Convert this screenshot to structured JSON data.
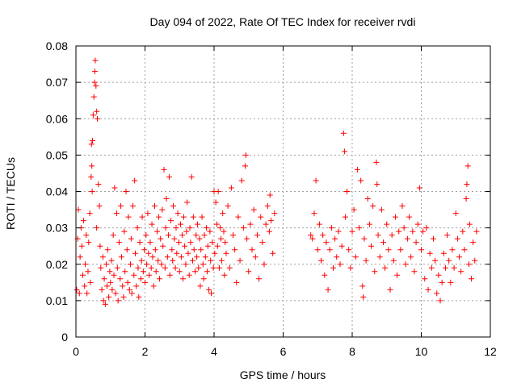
{
  "chart_data": {
    "type": "scatter",
    "title": "Day 094 of 2022, Rate Of TEC Index for receiver rvdi",
    "xlabel": "GPS time / hours",
    "ylabel": "ROTI / TECUs",
    "xlim": [
      0,
      12
    ],
    "ylim": [
      0,
      0.08
    ],
    "xticks": [
      "0",
      "2",
      "4",
      "6",
      "8",
      "10",
      "12"
    ],
    "yticks": [
      "0",
      "0.01",
      "0.02",
      "0.03",
      "0.04",
      "0.05",
      "0.06",
      "0.07",
      "0.08"
    ],
    "grid": true,
    "marker": "+",
    "color": "#ff0000",
    "series": [
      {
        "points": [
          [
            0.02,
            0.013
          ],
          [
            0.05,
            0.027
          ],
          [
            0.07,
            0.035
          ],
          [
            0.1,
            0.012
          ],
          [
            0.12,
            0.022
          ],
          [
            0.15,
            0.03
          ],
          [
            0.17,
            0.025
          ],
          [
            0.2,
            0.017
          ],
          [
            0.22,
            0.032
          ],
          [
            0.25,
            0.014
          ],
          [
            0.27,
            0.02
          ],
          [
            0.3,
            0.028
          ],
          [
            0.32,
            0.012
          ],
          [
            0.35,
            0.018
          ],
          [
            0.37,
            0.026
          ],
          [
            0.4,
            0.034
          ],
          [
            0.42,
            0.015
          ],
          [
            0.44,
            0.044
          ],
          [
            0.45,
            0.053
          ],
          [
            0.46,
            0.047
          ],
          [
            0.47,
            0.04
          ],
          [
            0.48,
            0.054
          ],
          [
            0.5,
            0.061
          ],
          [
            0.52,
            0.066
          ],
          [
            0.54,
            0.07
          ],
          [
            0.55,
            0.073
          ],
          [
            0.56,
            0.076
          ],
          [
            0.58,
            0.069
          ],
          [
            0.6,
            0.062
          ],
          [
            0.62,
            0.06
          ],
          [
            0.6,
            0.03
          ],
          [
            0.65,
            0.042
          ],
          [
            0.68,
            0.036
          ],
          [
            0.7,
            0.025
          ],
          [
            0.72,
            0.019
          ],
          [
            0.75,
            0.013
          ],
          [
            0.78,
            0.022
          ],
          [
            0.8,
            0.01
          ],
          [
            0.82,
            0.016
          ],
          [
            0.85,
            0.009
          ],
          [
            0.88,
            0.02
          ],
          [
            0.9,
            0.014
          ],
          [
            0.92,
            0.024
          ],
          [
            0.95,
            0.011
          ],
          [
            0.98,
            0.018
          ],
          [
            1.0,
            0.015
          ],
          [
            1.03,
            0.021
          ],
          [
            1.05,
            0.013
          ],
          [
            1.08,
            0.028
          ],
          [
            1.1,
            0.017
          ],
          [
            1.12,
            0.041
          ],
          [
            1.15,
            0.012
          ],
          [
            1.18,
            0.034
          ],
          [
            1.2,
            0.019
          ],
          [
            1.22,
            0.01
          ],
          [
            1.25,
            0.026
          ],
          [
            1.28,
            0.016
          ],
          [
            1.3,
            0.036
          ],
          [
            1.32,
            0.022
          ],
          [
            1.35,
            0.014
          ],
          [
            1.38,
            0.011
          ],
          [
            1.4,
            0.029
          ],
          [
            1.42,
            0.018
          ],
          [
            1.45,
            0.04
          ],
          [
            1.48,
            0.024
          ],
          [
            1.5,
            0.015
          ],
          [
            1.52,
            0.033
          ],
          [
            1.55,
            0.013
          ],
          [
            1.58,
            0.02
          ],
          [
            1.6,
            0.027
          ],
          [
            1.62,
            0.012
          ],
          [
            1.65,
            0.036
          ],
          [
            1.68,
            0.017
          ],
          [
            1.7,
            0.043
          ],
          [
            1.72,
            0.023
          ],
          [
            1.75,
            0.014
          ],
          [
            1.78,
            0.03
          ],
          [
            1.8,
            0.019
          ],
          [
            1.82,
            0.011
          ],
          [
            1.85,
            0.026
          ],
          [
            1.88,
            0.016
          ],
          [
            1.9,
            0.021
          ],
          [
            1.92,
            0.033
          ],
          [
            1.95,
            0.018
          ],
          [
            1.98,
            0.024
          ],
          [
            2.0,
            0.015
          ],
          [
            2.03,
            0.028
          ],
          [
            2.05,
            0.02
          ],
          [
            2.08,
            0.034
          ],
          [
            2.1,
            0.023
          ],
          [
            2.12,
            0.017
          ],
          [
            2.15,
            0.026
          ],
          [
            2.18,
            0.019
          ],
          [
            2.2,
            0.031
          ],
          [
            2.22,
            0.022
          ],
          [
            2.25,
            0.014
          ],
          [
            2.28,
            0.036
          ],
          [
            2.3,
            0.024
          ],
          [
            2.32,
            0.018
          ],
          [
            2.35,
            0.029
          ],
          [
            2.38,
            0.021
          ],
          [
            2.4,
            0.033
          ],
          [
            2.42,
            0.016
          ],
          [
            2.45,
            0.027
          ],
          [
            2.48,
            0.02
          ],
          [
            2.5,
            0.035
          ],
          [
            2.52,
            0.025
          ],
          [
            2.55,
            0.046
          ],
          [
            2.58,
            0.019
          ],
          [
            2.6,
            0.03
          ],
          [
            2.62,
            0.038
          ],
          [
            2.65,
            0.022
          ],
          [
            2.68,
            0.028
          ],
          [
            2.7,
            0.044
          ],
          [
            2.72,
            0.017
          ],
          [
            2.75,
            0.032
          ],
          [
            2.78,
            0.024
          ],
          [
            2.8,
            0.021
          ],
          [
            2.82,
            0.036
          ],
          [
            2.85,
            0.027
          ],
          [
            2.88,
            0.019
          ],
          [
            2.9,
            0.03
          ],
          [
            2.92,
            0.023
          ],
          [
            2.95,
            0.034
          ],
          [
            2.98,
            0.026
          ],
          [
            3.0,
            0.018
          ],
          [
            3.03,
            0.031
          ],
          [
            3.05,
            0.022
          ],
          [
            3.08,
            0.028
          ],
          [
            3.1,
            0.016
          ],
          [
            3.12,
            0.033
          ],
          [
            3.15,
            0.025
          ],
          [
            3.18,
            0.02
          ],
          [
            3.2,
            0.029
          ],
          [
            3.22,
            0.037
          ],
          [
            3.25,
            0.023
          ],
          [
            3.28,
            0.017
          ],
          [
            3.3,
            0.03
          ],
          [
            3.32,
            0.026
          ],
          [
            3.35,
            0.044
          ],
          [
            3.38,
            0.021
          ],
          [
            3.4,
            0.033
          ],
          [
            3.42,
            0.024
          ],
          [
            3.45,
            0.018
          ],
          [
            3.48,
            0.028
          ],
          [
            3.5,
            0.022
          ],
          [
            3.52,
            0.031
          ],
          [
            3.55,
            0.019
          ],
          [
            3.58,
            0.027
          ],
          [
            3.6,
            0.014
          ],
          [
            3.62,
            0.024
          ],
          [
            3.65,
            0.033
          ],
          [
            3.68,
            0.02
          ],
          [
            3.7,
            0.016
          ],
          [
            3.72,
            0.028
          ],
          [
            3.75,
            0.022
          ],
          [
            3.78,
            0.03
          ],
          [
            3.8,
            0.018
          ],
          [
            3.82,
            0.025
          ],
          [
            3.85,
            0.013
          ],
          [
            3.88,
            0.029
          ],
          [
            3.9,
            0.021
          ],
          [
            3.92,
            0.012
          ],
          [
            3.95,
            0.026
          ],
          [
            3.98,
            0.019
          ],
          [
            4.0,
            0.04
          ],
          [
            4.02,
            0.023
          ],
          [
            4.05,
            0.037
          ],
          [
            4.08,
            0.031
          ],
          [
            4.1,
            0.025
          ],
          [
            4.12,
            0.04
          ],
          [
            4.15,
            0.019
          ],
          [
            4.18,
            0.03
          ],
          [
            4.2,
            0.027
          ],
          [
            4.22,
            0.021
          ],
          [
            4.25,
            0.034
          ],
          [
            4.28,
            0.029
          ],
          [
            4.3,
            0.017
          ],
          [
            4.32,
            0.026
          ],
          [
            4.35,
            0.023
          ],
          [
            4.4,
            0.036
          ],
          [
            4.45,
            0.019
          ],
          [
            4.5,
            0.041
          ],
          [
            4.55,
            0.028
          ],
          [
            4.6,
            0.024
          ],
          [
            4.65,
            0.015
          ],
          [
            4.7,
            0.033
          ],
          [
            4.75,
            0.021
          ],
          [
            4.8,
            0.043
          ],
          [
            4.85,
            0.03
          ],
          [
            4.9,
            0.047
          ],
          [
            4.92,
            0.05
          ],
          [
            4.95,
            0.027
          ],
          [
            5.0,
            0.018
          ],
          [
            5.05,
            0.031
          ],
          [
            5.1,
            0.024
          ],
          [
            5.15,
            0.035
          ],
          [
            5.2,
            0.022
          ],
          [
            5.25,
            0.028
          ],
          [
            5.3,
            0.016
          ],
          [
            5.35,
            0.033
          ],
          [
            5.4,
            0.026
          ],
          [
            5.45,
            0.02
          ],
          [
            5.5,
            0.031
          ],
          [
            5.55,
            0.036
          ],
          [
            5.6,
            0.029
          ],
          [
            5.62,
            0.039
          ],
          [
            5.65,
            0.032
          ],
          [
            5.7,
            0.023
          ],
          [
            5.75,
            0.034
          ],
          [
            6.8,
            0.028
          ],
          [
            6.85,
            0.027
          ],
          [
            6.9,
            0.034
          ],
          [
            6.95,
            0.043
          ],
          [
            7.0,
            0.024
          ],
          [
            7.05,
            0.031
          ],
          [
            7.1,
            0.021
          ],
          [
            7.15,
            0.028
          ],
          [
            7.2,
            0.017
          ],
          [
            7.25,
            0.026
          ],
          [
            7.3,
            0.013
          ],
          [
            7.35,
            0.024
          ],
          [
            7.4,
            0.03
          ],
          [
            7.45,
            0.019
          ],
          [
            7.5,
            0.027
          ],
          [
            7.55,
            0.022
          ],
          [
            7.6,
            0.029
          ],
          [
            7.65,
            0.02
          ],
          [
            7.7,
            0.025
          ],
          [
            7.75,
            0.056
          ],
          [
            7.78,
            0.051
          ],
          [
            7.8,
            0.033
          ],
          [
            7.85,
            0.04
          ],
          [
            7.9,
            0.024
          ],
          [
            7.95,
            0.019
          ],
          [
            8.0,
            0.029
          ],
          [
            8.05,
            0.035
          ],
          [
            8.1,
            0.022
          ],
          [
            8.15,
            0.046
          ],
          [
            8.2,
            0.03
          ],
          [
            8.25,
            0.043
          ],
          [
            8.3,
            0.014
          ],
          [
            8.32,
            0.011
          ],
          [
            8.35,
            0.027
          ],
          [
            8.4,
            0.021
          ],
          [
            8.45,
            0.038
          ],
          [
            8.5,
            0.031
          ],
          [
            8.55,
            0.025
          ],
          [
            8.6,
            0.036
          ],
          [
            8.65,
            0.018
          ],
          [
            8.7,
            0.048
          ],
          [
            8.72,
            0.042
          ],
          [
            8.75,
            0.028
          ],
          [
            8.8,
            0.022
          ],
          [
            8.85,
            0.035
          ],
          [
            8.9,
            0.026
          ],
          [
            8.95,
            0.019
          ],
          [
            9.0,
            0.031
          ],
          [
            9.05,
            0.024
          ],
          [
            9.1,
            0.013
          ],
          [
            9.15,
            0.028
          ],
          [
            9.2,
            0.021
          ],
          [
            9.25,
            0.033
          ],
          [
            9.3,
            0.017
          ],
          [
            9.35,
            0.029
          ],
          [
            9.4,
            0.024
          ],
          [
            9.45,
            0.036
          ],
          [
            9.5,
            0.03
          ],
          [
            9.55,
            0.02
          ],
          [
            9.6,
            0.027
          ],
          [
            9.65,
            0.033
          ],
          [
            9.7,
            0.022
          ],
          [
            9.75,
            0.029
          ],
          [
            9.8,
            0.018
          ],
          [
            9.85,
            0.026
          ],
          [
            9.9,
            0.031
          ],
          [
            9.95,
            0.041
          ],
          [
            10.0,
            0.024
          ],
          [
            10.05,
            0.029
          ],
          [
            10.1,
            0.016
          ],
          [
            10.15,
            0.03
          ],
          [
            10.2,
            0.013
          ],
          [
            10.25,
            0.023
          ],
          [
            10.3,
            0.019
          ],
          [
            10.35,
            0.027
          ],
          [
            10.4,
            0.021
          ],
          [
            10.45,
            0.012
          ],
          [
            10.5,
            0.017
          ],
          [
            10.55,
            0.01
          ],
          [
            10.6,
            0.015
          ],
          [
            10.65,
            0.023
          ],
          [
            10.7,
            0.019
          ],
          [
            10.75,
            0.028
          ],
          [
            10.8,
            0.021
          ],
          [
            10.85,
            0.015
          ],
          [
            10.9,
            0.024
          ],
          [
            10.95,
            0.019
          ],
          [
            11.0,
            0.034
          ],
          [
            11.05,
            0.027
          ],
          [
            11.1,
            0.022
          ],
          [
            11.15,
            0.018
          ],
          [
            11.2,
            0.029
          ],
          [
            11.25,
            0.024
          ],
          [
            11.3,
            0.038
          ],
          [
            11.32,
            0.042
          ],
          [
            11.35,
            0.047
          ],
          [
            11.38,
            0.02
          ],
          [
            11.4,
            0.031
          ],
          [
            11.45,
            0.016
          ],
          [
            11.5,
            0.026
          ],
          [
            11.55,
            0.021
          ],
          [
            11.6,
            0.029
          ]
        ]
      }
    ]
  }
}
